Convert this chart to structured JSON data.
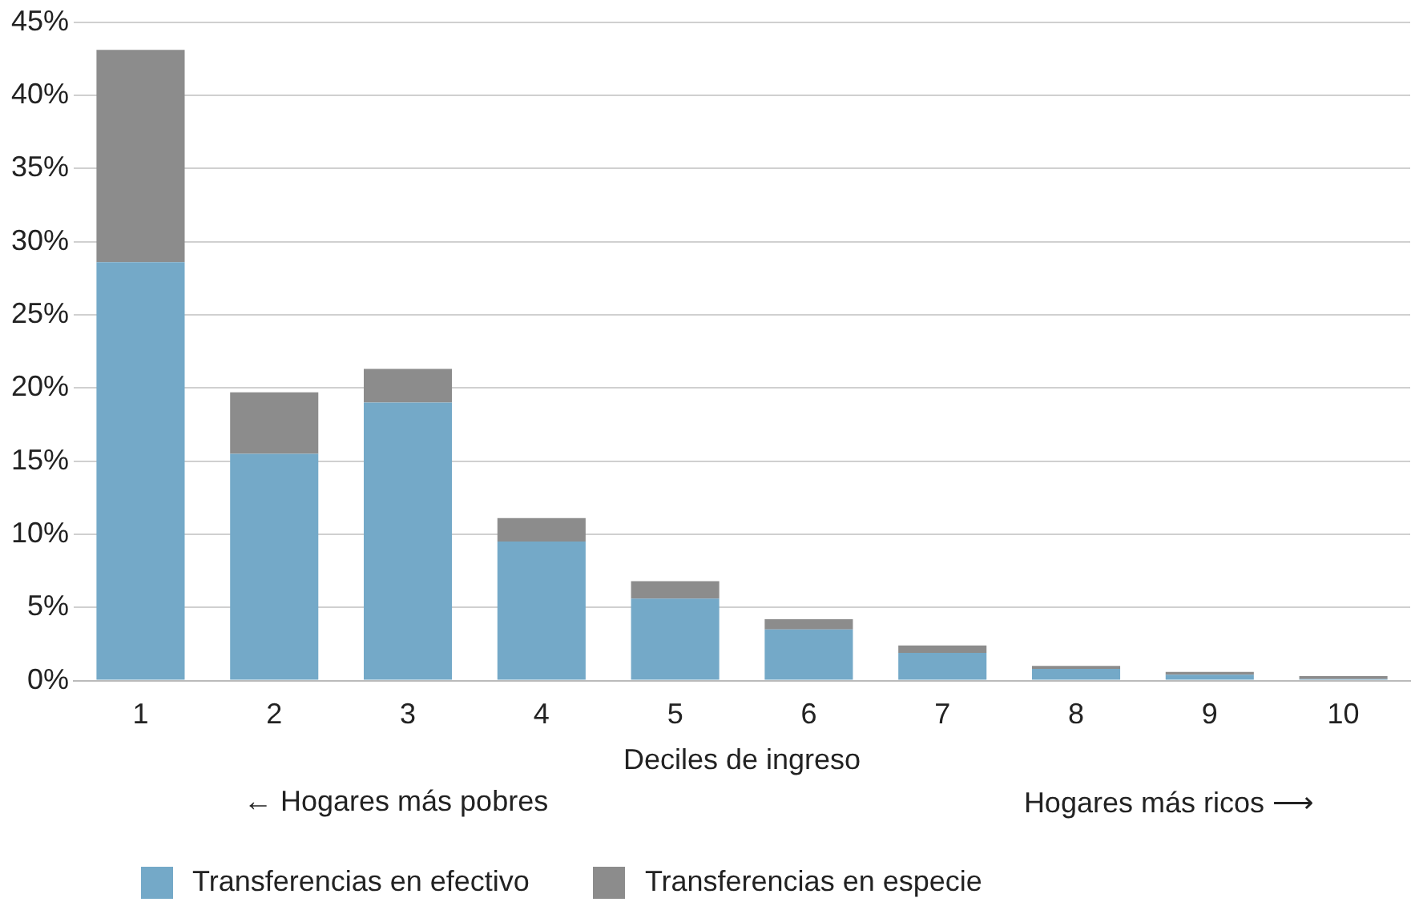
{
  "chart_data": {
    "type": "bar",
    "stacked": true,
    "xlabel": "Deciles de ingreso",
    "categories": [
      "1",
      "2",
      "3",
      "4",
      "5",
      "6",
      "7",
      "8",
      "9",
      "10"
    ],
    "series": [
      {
        "name": "Transferencias en efectivo",
        "color": "#74a9c8",
        "values": [
          28.6,
          15.5,
          19.0,
          9.5,
          5.6,
          3.5,
          1.9,
          0.8,
          0.4,
          0.1
        ]
      },
      {
        "name": "Transferencias en especie",
        "color": "#8c8c8c",
        "values": [
          14.5,
          4.2,
          2.3,
          1.6,
          1.2,
          0.7,
          0.5,
          0.2,
          0.2,
          0.2
        ]
      }
    ],
    "ylim": [
      0,
      45
    ],
    "yticks": [
      {
        "value": 0,
        "label": "0%"
      },
      {
        "value": 5,
        "label": "5%"
      },
      {
        "value": 10,
        "label": "10%"
      },
      {
        "value": 15,
        "label": "15%"
      },
      {
        "value": 20,
        "label": "20%"
      },
      {
        "value": 25,
        "label": "25%"
      },
      {
        "value": 30,
        "label": "30%"
      },
      {
        "value": 35,
        "label": "35%"
      },
      {
        "value": 40,
        "label": "40%"
      },
      {
        "value": 45,
        "label": "45%"
      }
    ],
    "grid": "y",
    "legend": "bottom",
    "annotations": [
      "← Hogares más pobres",
      "Hogares más ricos ⟶"
    ]
  }
}
